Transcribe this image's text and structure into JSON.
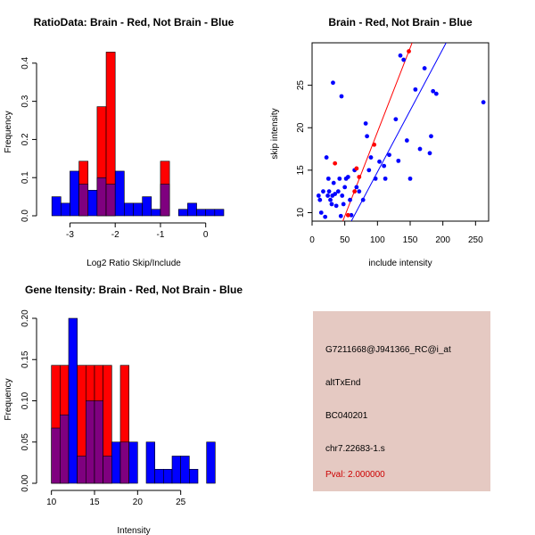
{
  "colors": {
    "red": "#ff0000",
    "blue": "#0000ff",
    "overlap": "#7f007f",
    "panel": "#e5c9c2",
    "pval": "#cc0000"
  },
  "chart_data": [
    {
      "id": "ratio",
      "type": "bar",
      "title": "RatioData: Brain - Red, Not Brain - Blue",
      "xlabel": "Log2 Ratio Skip/Include",
      "ylabel": "Frequency",
      "xlim": [
        -3.6,
        0.4
      ],
      "ylim": [
        0,
        0.43
      ],
      "bin_width": 0.2,
      "bin_starts": [
        -3.4,
        -3.2,
        -3.0,
        -2.8,
        -2.6,
        -2.4,
        -2.2,
        -2.0,
        -1.8,
        -1.6,
        -1.4,
        -1.2,
        -1.0,
        -0.8,
        -0.6,
        -0.4,
        -0.2,
        0.0,
        0.2
      ],
      "xticks": [
        -3,
        -2,
        -1,
        0
      ],
      "yticks": [
        0.0,
        0.1,
        0.2,
        0.3,
        0.4
      ],
      "series": [
        {
          "name": "Not Brain",
          "color": "blue",
          "values": [
            0.05,
            0.033,
            0.117,
            0.083,
            0.067,
            0.1,
            0.083,
            0.117,
            0.033,
            0.033,
            0.05,
            0.017,
            0.083,
            0.0,
            0.017,
            0.033,
            0.017,
            0.017,
            0.017
          ]
        },
        {
          "name": "Brain",
          "color": "red",
          "values": [
            0.0,
            0.0,
            0.0,
            0.143,
            0.0,
            0.286,
            0.429,
            0.0,
            0.0,
            0.0,
            0.0,
            0.0,
            0.143,
            0.0,
            0.0,
            0.0,
            0.0,
            0.0,
            0.0
          ]
        }
      ]
    },
    {
      "id": "scatter",
      "type": "scatter",
      "title": "Brain - Red, Not Brain - Blue",
      "xlabel": "include intensity",
      "ylabel": "skip intensity",
      "xlim": [
        0,
        270
      ],
      "ylim": [
        9,
        30
      ],
      "xticks": [
        0,
        50,
        100,
        150,
        200,
        250
      ],
      "yticks": [
        10,
        15,
        20,
        25
      ],
      "series": [
        {
          "name": "Not Brain",
          "color": "blue",
          "points": [
            [
              10,
              12
            ],
            [
              12,
              11.5
            ],
            [
              14,
              10
            ],
            [
              17,
              12.5
            ],
            [
              20,
              9.5
            ],
            [
              22,
              16.5
            ],
            [
              24,
              12
            ],
            [
              25,
              14
            ],
            [
              26,
              12.5
            ],
            [
              28,
              11.5
            ],
            [
              30,
              11
            ],
            [
              31,
              12
            ],
            [
              32,
              25.3
            ],
            [
              33,
              13.5
            ],
            [
              35,
              12.2
            ],
            [
              37,
              10.8
            ],
            [
              40,
              12.5
            ],
            [
              42,
              14
            ],
            [
              44,
              9.6
            ],
            [
              45,
              23.7
            ],
            [
              46,
              12
            ],
            [
              48,
              11
            ],
            [
              50,
              13
            ],
            [
              52,
              14
            ],
            [
              55,
              14.2
            ],
            [
              58,
              11.5
            ],
            [
              60,
              9.7
            ],
            [
              65,
              15
            ],
            [
              68,
              13
            ],
            [
              72,
              12.5
            ],
            [
              78,
              11.5
            ],
            [
              82,
              20.5
            ],
            [
              84,
              19
            ],
            [
              87,
              15
            ],
            [
              90,
              16.5
            ],
            [
              97,
              14
            ],
            [
              103,
              16
            ],
            [
              110,
              15.5
            ],
            [
              112,
              14
            ],
            [
              118,
              16.8
            ],
            [
              128,
              21
            ],
            [
              132,
              16.1
            ],
            [
              135,
              28.5
            ],
            [
              140,
              28
            ],
            [
              145,
              18.5
            ],
            [
              150,
              14
            ],
            [
              158,
              24.5
            ],
            [
              165,
              17.5
            ],
            [
              172,
              27
            ],
            [
              180,
              17
            ],
            [
              182,
              19
            ],
            [
              185,
              24.3
            ],
            [
              190,
              24
            ],
            [
              262,
              23
            ]
          ]
        },
        {
          "name": "Brain",
          "color": "red",
          "points": [
            [
              35,
              15.8
            ],
            [
              55,
              9.7
            ],
            [
              65,
              12.5
            ],
            [
              68,
              15.2
            ],
            [
              72,
              14.2
            ],
            [
              95,
              18
            ],
            [
              148,
              29
            ]
          ]
        }
      ],
      "fit_lines": [
        {
          "name": "Brain",
          "color": "red",
          "from": [
            47,
            9
          ],
          "to": [
            153,
            30
          ]
        },
        {
          "name": "Not Brain",
          "color": "blue",
          "from": [
            60,
            9
          ],
          "to": [
            205,
            30
          ]
        }
      ]
    },
    {
      "id": "intensity",
      "type": "bar",
      "title": "Gene Itensity: Brain - Red, Not Brain - Blue",
      "xlabel": "Intensity",
      "ylabel": "Frequency",
      "xlim": [
        9.0,
        30.0
      ],
      "ylim": [
        0,
        0.2
      ],
      "bin_width": 1,
      "bin_starts": [
        10,
        11,
        12,
        13,
        14,
        15,
        16,
        17,
        18,
        19,
        20,
        21,
        22,
        23,
        24,
        25,
        26,
        27,
        28
      ],
      "xticks": [
        10,
        15,
        20,
        25
      ],
      "yticks": [
        0.0,
        0.05,
        0.1,
        0.15,
        0.2
      ],
      "series": [
        {
          "name": "Not Brain",
          "color": "blue",
          "values": [
            0.067,
            0.083,
            0.2,
            0.033,
            0.1,
            0.1,
            0.033,
            0.05,
            0.05,
            0.05,
            0.0,
            0.05,
            0.017,
            0.017,
            0.033,
            0.033,
            0.017,
            0.0,
            0.05
          ]
        },
        {
          "name": "Brain",
          "color": "red",
          "values": [
            0.143,
            0.143,
            0.0,
            0.143,
            0.143,
            0.143,
            0.143,
            0.0,
            0.143,
            0.0,
            0.0,
            0.0,
            0.0,
            0.0,
            0.0,
            0.0,
            0.0,
            0.0,
            0.0
          ]
        }
      ]
    }
  ],
  "info": {
    "probe": "G7211668@J941366_RC@i_at",
    "event": "altTxEnd",
    "accession": "BC040201",
    "location": "chr7.22683-1.s",
    "pval": "Pval: 2.000000"
  }
}
